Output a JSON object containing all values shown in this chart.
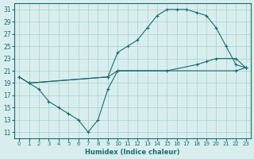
{
  "xlabel": "Humidex (Indice chaleur)",
  "xlim": [
    -0.5,
    23.5
  ],
  "ylim": [
    10,
    32
  ],
  "yticks": [
    11,
    13,
    15,
    17,
    19,
    21,
    23,
    25,
    27,
    29,
    31
  ],
  "xticks": [
    0,
    1,
    2,
    3,
    4,
    5,
    6,
    7,
    8,
    9,
    10,
    11,
    12,
    13,
    14,
    15,
    16,
    17,
    18,
    19,
    20,
    21,
    22,
    23
  ],
  "background_color": "#d8eeee",
  "grid_color": "#aacccc",
  "line_color": "#1a6b6b",
  "lines": [
    {
      "x": [
        0,
        1,
        9,
        10,
        11,
        12,
        13,
        14,
        15,
        16,
        17,
        18,
        19,
        20,
        21,
        22,
        23
      ],
      "y": [
        20,
        19,
        20,
        24,
        25,
        26,
        28,
        30,
        31,
        31,
        31,
        30.5,
        30,
        28,
        25,
        22,
        21.5
      ]
    },
    {
      "x": [
        0,
        1,
        9,
        10,
        15,
        18,
        19,
        20,
        22,
        23
      ],
      "y": [
        20,
        19,
        20,
        21,
        21,
        22,
        22.5,
        23,
        23,
        21.5
      ]
    },
    {
      "x": [
        1,
        2,
        3,
        4,
        5,
        6,
        7,
        8,
        9,
        10,
        22,
        23
      ],
      "y": [
        19,
        18,
        16,
        15,
        14,
        13,
        11,
        13,
        18,
        21,
        21,
        21.5
      ]
    }
  ]
}
